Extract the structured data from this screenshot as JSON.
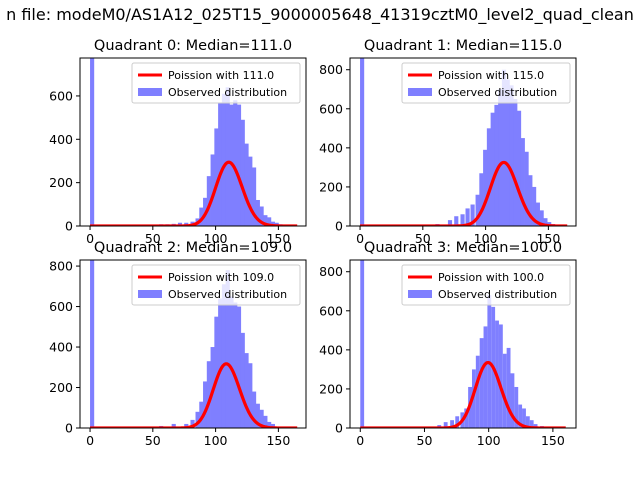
{
  "figure": {
    "suptitle": "n file: modeM0/AS1A12_025T15_9000005648_41319cztM0_level2_quad_clean"
  },
  "colors": {
    "observed": "#7f7fff",
    "poisson": "#ff0000",
    "axes": "#000000"
  },
  "chart_data": [
    {
      "type": "bar",
      "title": "Quadrant 0: Median=111.0",
      "xlim": [
        -8,
        172
      ],
      "ylim": [
        0,
        775
      ],
      "xticks": [
        0,
        50,
        100,
        150
      ],
      "yticks": [
        0,
        200,
        400,
        600
      ],
      "legend": {
        "placement": "top-right",
        "entries": [
          "Poission with 111.0",
          "Observed distribution"
        ]
      },
      "series": [
        {
          "name": "Observed distribution",
          "bin_width": 3.3,
          "bins_x": [
            0,
            55,
            60,
            65,
            70,
            75,
            80,
            84,
            87,
            90,
            93,
            96,
            99,
            102,
            105,
            108,
            111,
            114,
            117,
            120,
            123,
            126,
            129,
            132,
            135,
            138,
            141,
            144,
            147,
            150
          ],
          "counts": [
            775,
            8,
            8,
            10,
            15,
            15,
            20,
            35,
            85,
            130,
            230,
            330,
            450,
            570,
            610,
            640,
            560,
            580,
            560,
            490,
            380,
            320,
            270,
            120,
            90,
            50,
            40,
            20,
            15,
            8
          ]
        },
        {
          "name": "Poission with 111.0",
          "lambda": 111.0,
          "n": 7770,
          "x_range": [
            0,
            165
          ]
        }
      ]
    },
    {
      "type": "bar",
      "title": "Quadrant 1: Median=115.0",
      "xlim": [
        -8,
        172
      ],
      "ylim": [
        0,
        860
      ],
      "xticks": [
        0,
        50,
        100,
        150
      ],
      "yticks": [
        0,
        200,
        400,
        600,
        800
      ],
      "legend": {
        "placement": "top-right",
        "entries": [
          "Poission with 115.0",
          "Observed distribution"
        ]
      },
      "series": [
        {
          "name": "Observed distribution",
          "bin_width": 3.3,
          "bins_x": [
            0,
            60,
            70,
            75,
            80,
            84,
            88,
            92,
            95,
            98,
            101,
            104,
            107,
            110,
            113,
            116,
            119,
            122,
            125,
            128,
            131,
            134,
            137,
            140,
            143,
            146,
            149,
            152
          ],
          "counts": [
            860,
            10,
            30,
            50,
            60,
            90,
            110,
            160,
            270,
            390,
            500,
            580,
            620,
            700,
            800,
            750,
            720,
            650,
            590,
            450,
            380,
            260,
            200,
            120,
            80,
            40,
            20,
            10
          ]
        },
        {
          "name": "Poission with 115.0",
          "lambda": 115.0,
          "n": 8750,
          "x_range": [
            0,
            165
          ]
        }
      ]
    },
    {
      "type": "bar",
      "title": "Quadrant 2: Median=109.0",
      "xlim": [
        -8,
        172
      ],
      "ylim": [
        0,
        830
      ],
      "xticks": [
        0,
        50,
        100,
        150
      ],
      "yticks": [
        0,
        200,
        400,
        600,
        800
      ],
      "legend": {
        "placement": "top-right",
        "entries": [
          "Poission with 109.0",
          "Observed distribution"
        ]
      },
      "series": [
        {
          "name": "Observed distribution",
          "bin_width": 3.3,
          "bins_x": [
            0,
            55,
            65,
            75,
            80,
            84,
            87,
            90,
            93,
            96,
            99,
            102,
            105,
            108,
            111,
            114,
            117,
            120,
            123,
            126,
            129,
            132,
            135,
            138,
            141,
            144
          ],
          "counts": [
            830,
            10,
            20,
            20,
            40,
            80,
            130,
            230,
            330,
            400,
            550,
            640,
            710,
            780,
            650,
            620,
            600,
            470,
            370,
            320,
            180,
            120,
            90,
            60,
            30,
            20
          ]
        },
        {
          "name": "Poission with 109.0",
          "lambda": 109.0,
          "n": 8300,
          "x_range": [
            0,
            165
          ]
        }
      ]
    },
    {
      "type": "bar",
      "title": "Quadrant 3: Median=100.0",
      "xlim": [
        -8,
        168
      ],
      "ylim": [
        0,
        860
      ],
      "xticks": [
        0,
        50,
        100,
        150
      ],
      "yticks": [
        0,
        200,
        400,
        600,
        800
      ],
      "legend": {
        "placement": "top-right",
        "entries": [
          "Poission with 100.0",
          "Observed distribution"
        ]
      },
      "series": [
        {
          "name": "Observed distribution",
          "bin_width": 3.0,
          "bins_x": [
            0,
            60,
            65,
            70,
            74,
            78,
            81,
            84,
            87,
            90,
            93,
            96,
            99,
            102,
            105,
            108,
            111,
            114,
            117,
            120,
            123,
            126,
            129,
            132,
            135,
            140
          ],
          "counts": [
            860,
            15,
            30,
            40,
            60,
            80,
            100,
            210,
            300,
            370,
            460,
            520,
            680,
            620,
            550,
            530,
            380,
            410,
            280,
            210,
            120,
            100,
            60,
            40,
            20,
            10
          ]
        },
        {
          "name": "Poission with 100.0",
          "lambda": 100.0,
          "n": 8400,
          "x_range": [
            0,
            160
          ]
        }
      ]
    }
  ]
}
